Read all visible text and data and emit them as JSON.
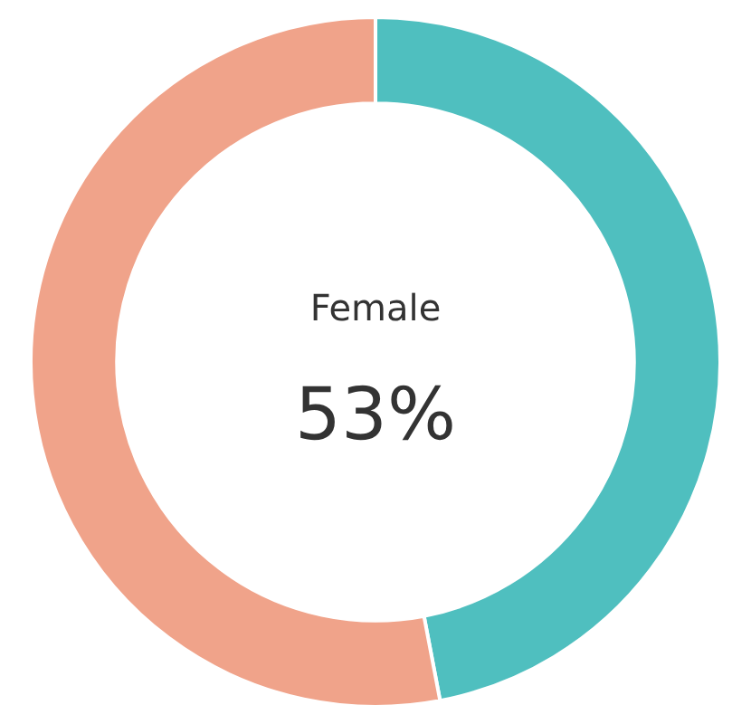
{
  "chart_data": {
    "type": "donut",
    "categories": [
      null,
      "Female"
    ],
    "values": [
      47,
      53
    ],
    "colors": [
      "#4fbfbf",
      "#f0a38a"
    ],
    "value_labels": [
      null,
      "53%"
    ],
    "legend": false
  }
}
